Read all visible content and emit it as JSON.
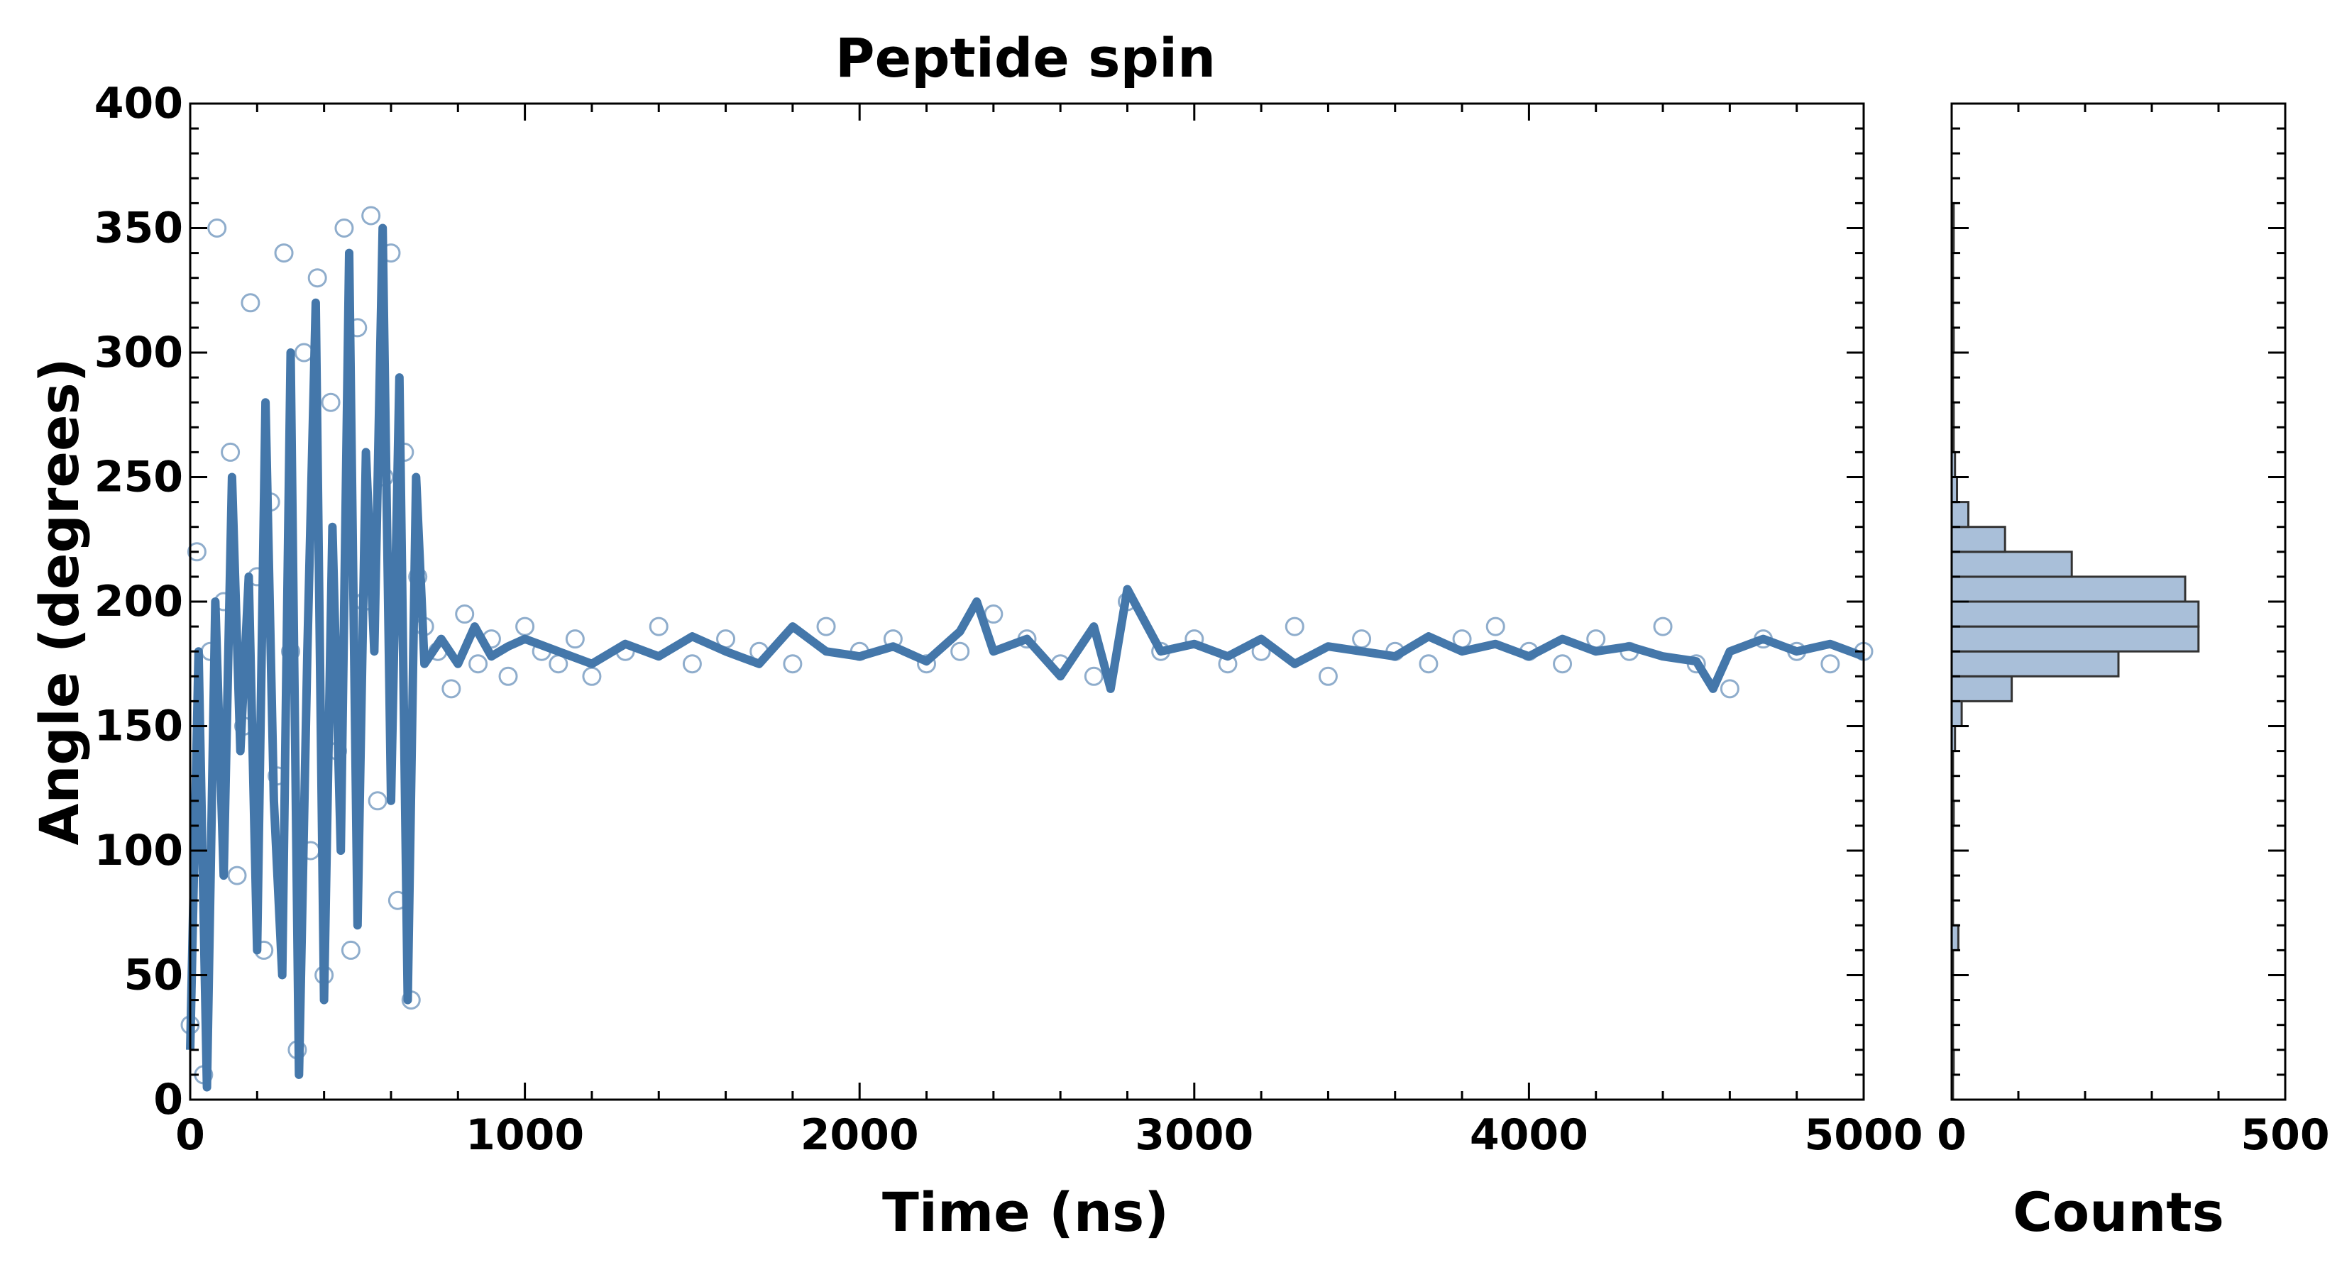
{
  "chart_data": [
    {
      "type": "scatter",
      "title": "Peptide spin",
      "xlabel": "Time (ns)",
      "ylabel": "Angle (degrees)",
      "xlim": [
        0,
        5000
      ],
      "ylim": [
        0,
        400
      ],
      "x_ticks": [
        "0",
        "1000",
        "2000",
        "3000",
        "4000",
        "5000"
      ],
      "y_ticks": [
        "0",
        "50",
        "100",
        "150",
        "200",
        "250",
        "300",
        "350",
        "400"
      ],
      "grid": false,
      "legend": "none",
      "series": [
        {
          "style": "open-circles",
          "color": "#4477aa",
          "description_of_data": "raw samples",
          "x": [
            0,
            20,
            40,
            60,
            80,
            100,
            120,
            140,
            160,
            180,
            200,
            220,
            240,
            260,
            280,
            300,
            320,
            340,
            360,
            380,
            400,
            420,
            440,
            460,
            480,
            500,
            520,
            540,
            560,
            580,
            600,
            620,
            640,
            660,
            680,
            700,
            740,
            780,
            820,
            860,
            900,
            950,
            1000,
            1050,
            1100,
            1150,
            1200,
            1300,
            1400,
            1500,
            1600,
            1700,
            1800,
            1900,
            2000,
            2100,
            2200,
            2300,
            2400,
            2500,
            2600,
            2700,
            2800,
            2900,
            3000,
            3100,
            3200,
            3300,
            3400,
            3500,
            3600,
            3700,
            3800,
            3900,
            4000,
            4100,
            4200,
            4300,
            4400,
            4500,
            4600,
            4700,
            4800,
            4900,
            5000
          ],
          "y": [
            30,
            220,
            10,
            180,
            350,
            200,
            260,
            90,
            150,
            320,
            210,
            60,
            240,
            130,
            340,
            180,
            20,
            300,
            100,
            330,
            50,
            280,
            140,
            350,
            60,
            310,
            200,
            355,
            120,
            250,
            340,
            80,
            260,
            40,
            210,
            190,
            180,
            165,
            195,
            175,
            185,
            170,
            190,
            180,
            175,
            185,
            170,
            180,
            190,
            175,
            185,
            180,
            175,
            190,
            180,
            185,
            175,
            180,
            195,
            185,
            175,
            170,
            200,
            180,
            185,
            175,
            180,
            190,
            170,
            185,
            180,
            175,
            185,
            190,
            180,
            175,
            185,
            180,
            190,
            175,
            165,
            185,
            180,
            175,
            180
          ]
        },
        {
          "style": "line",
          "color": "#4477aa",
          "description_of_data": "smoothed trace",
          "x": [
            0,
            25,
            50,
            75,
            100,
            125,
            150,
            175,
            200,
            225,
            250,
            275,
            300,
            325,
            350,
            375,
            400,
            425,
            450,
            475,
            500,
            525,
            550,
            575,
            600,
            625,
            650,
            675,
            700,
            750,
            800,
            850,
            900,
            950,
            1000,
            1100,
            1200,
            1300,
            1400,
            1500,
            1600,
            1700,
            1800,
            1900,
            2000,
            2100,
            2200,
            2300,
            2350,
            2400,
            2500,
            2600,
            2700,
            2750,
            2800,
            2900,
            3000,
            3100,
            3200,
            3300,
            3400,
            3500,
            3600,
            3700,
            3800,
            3900,
            4000,
            4100,
            4200,
            4300,
            4400,
            4500,
            4550,
            4600,
            4700,
            4800,
            4900,
            5000
          ],
          "y": [
            20,
            180,
            5,
            200,
            90,
            250,
            140,
            210,
            60,
            280,
            120,
            50,
            300,
            10,
            180,
            320,
            40,
            230,
            100,
            340,
            70,
            260,
            180,
            350,
            120,
            290,
            40,
            250,
            175,
            185,
            175,
            190,
            178,
            182,
            185,
            180,
            175,
            183,
            178,
            186,
            180,
            175,
            190,
            180,
            178,
            182,
            176,
            188,
            200,
            180,
            185,
            170,
            190,
            165,
            205,
            180,
            183,
            178,
            185,
            175,
            182,
            180,
            178,
            186,
            180,
            183,
            178,
            185,
            180,
            182,
            178,
            176,
            165,
            180,
            185,
            180,
            183,
            178
          ]
        }
      ]
    },
    {
      "type": "bar",
      "orientation": "horizontal",
      "xlabel": "Counts",
      "ylabel": "",
      "xlim": [
        0,
        500
      ],
      "ylim": [
        0,
        400
      ],
      "x_ticks": [
        "0",
        "500"
      ],
      "grid": false,
      "legend": "none",
      "bins": [
        0,
        10,
        20,
        30,
        40,
        50,
        60,
        70,
        80,
        90,
        100,
        110,
        120,
        130,
        140,
        150,
        160,
        170,
        180,
        190,
        200,
        210,
        220,
        230,
        240,
        250,
        260,
        270,
        280,
        290,
        300,
        310,
        320,
        330,
        340,
        350,
        360,
        370,
        380,
        390
      ],
      "counts": [
        2,
        3,
        2,
        2,
        2,
        2,
        10,
        2,
        2,
        2,
        2,
        3,
        2,
        2,
        5,
        15,
        90,
        250,
        370,
        370,
        350,
        180,
        80,
        25,
        8,
        5,
        3,
        3,
        2,
        2,
        3,
        2,
        2,
        2,
        3,
        3,
        0,
        0,
        0,
        0
      ],
      "fill": "#a9bfd9",
      "edge": "#333333"
    }
  ]
}
